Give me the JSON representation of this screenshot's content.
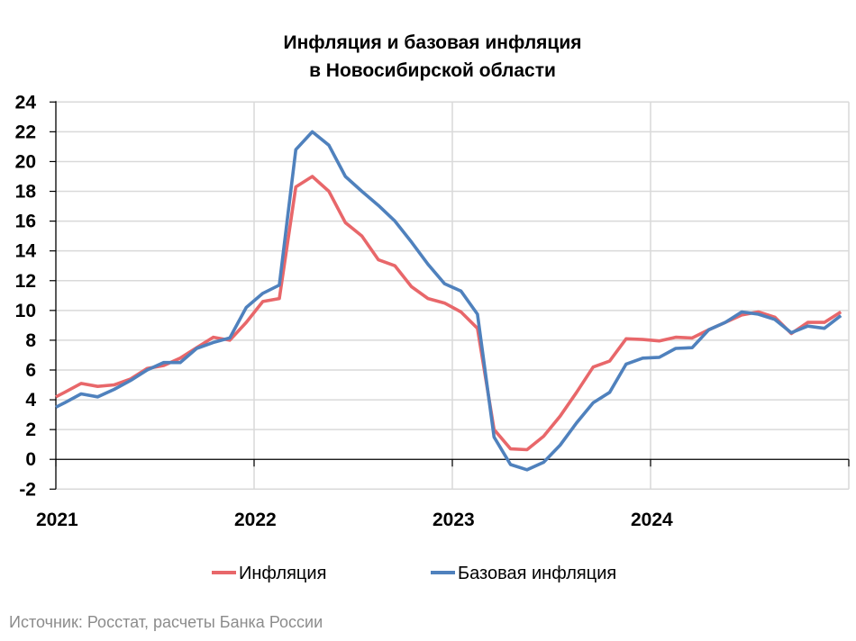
{
  "chart_data": {
    "type": "line",
    "title": [
      "Инфляция и базовая инфляция",
      "в Новосибирской области"
    ],
    "xlabel": "",
    "ylabel": "",
    "ylim": [
      -2,
      24
    ],
    "yticks": [
      -2,
      0,
      2,
      4,
      6,
      8,
      10,
      12,
      14,
      16,
      18,
      20,
      22,
      24
    ],
    "xtick_labels": [
      "2021",
      "2022",
      "2023",
      "2024"
    ],
    "x_frequency": "monthly, Jan 2021 – Dec 2024",
    "grid": true,
    "legend_position": "bottom",
    "series": [
      {
        "name": "Инфляция",
        "color": "#E8676A",
        "values": [
          4.5,
          5.1,
          4.9,
          5.0,
          5.4,
          6.1,
          6.3,
          6.8,
          7.5,
          8.2,
          8.0,
          9.2,
          10.6,
          10.8,
          18.3,
          19.0,
          18.0,
          15.9,
          15.0,
          13.4,
          13.0,
          11.6,
          10.8,
          10.5,
          9.9,
          8.8,
          2.0,
          0.7,
          0.65,
          1.55,
          2.9,
          4.5,
          6.2,
          6.6,
          8.1,
          8.05,
          7.95,
          8.2,
          8.15,
          8.7,
          9.2,
          9.7,
          9.9,
          9.55,
          8.45,
          9.2,
          9.2,
          9.9
        ]
      },
      {
        "name": "Базовая инфляция",
        "color": "#4F81BD",
        "values": [
          3.8,
          4.4,
          4.2,
          4.7,
          5.3,
          6.0,
          6.5,
          6.5,
          7.45,
          7.85,
          8.15,
          10.2,
          11.15,
          11.7,
          20.8,
          22.0,
          21.1,
          19.0,
          18.0,
          17.05,
          16.0,
          14.6,
          13.1,
          11.8,
          11.3,
          9.75,
          1.5,
          -0.35,
          -0.7,
          -0.2,
          0.95,
          2.45,
          3.8,
          4.5,
          6.4,
          6.8,
          6.85,
          7.45,
          7.5,
          8.7,
          9.2,
          9.9,
          9.75,
          9.4,
          8.5,
          8.95,
          8.8,
          9.65
        ]
      }
    ]
  },
  "source": "Источник: Росстат, расчеты Банка России"
}
